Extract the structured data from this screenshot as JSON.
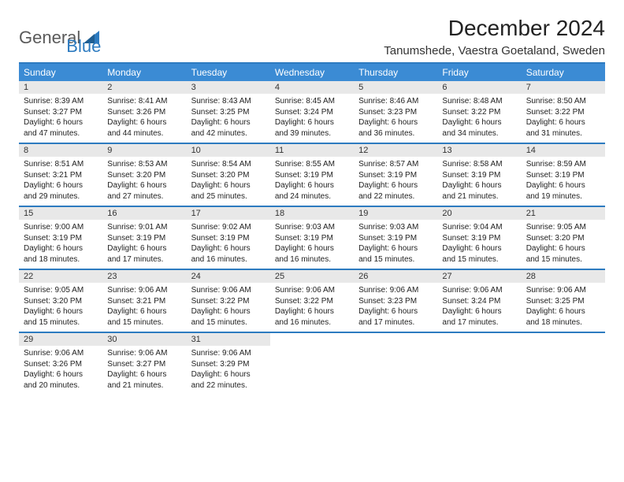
{
  "brand": {
    "part1": "General",
    "part2": "Blue"
  },
  "title": "December 2024",
  "location": "Tanumshede, Vaestra Goetaland, Sweden",
  "colors": {
    "header_bar": "#3b8bd4",
    "border": "#2d7bc0",
    "daynum_bg": "#e8e8e8",
    "text": "#222222",
    "logo_gray": "#5a5a5a",
    "logo_blue": "#2d7bc0",
    "page_bg": "#ffffff"
  },
  "weekdays": [
    "Sunday",
    "Monday",
    "Tuesday",
    "Wednesday",
    "Thursday",
    "Friday",
    "Saturday"
  ],
  "weeks": [
    [
      {
        "n": "1",
        "sr": "Sunrise: 8:39 AM",
        "ss": "Sunset: 3:27 PM",
        "d1": "Daylight: 6 hours",
        "d2": "and 47 minutes."
      },
      {
        "n": "2",
        "sr": "Sunrise: 8:41 AM",
        "ss": "Sunset: 3:26 PM",
        "d1": "Daylight: 6 hours",
        "d2": "and 44 minutes."
      },
      {
        "n": "3",
        "sr": "Sunrise: 8:43 AM",
        "ss": "Sunset: 3:25 PM",
        "d1": "Daylight: 6 hours",
        "d2": "and 42 minutes."
      },
      {
        "n": "4",
        "sr": "Sunrise: 8:45 AM",
        "ss": "Sunset: 3:24 PM",
        "d1": "Daylight: 6 hours",
        "d2": "and 39 minutes."
      },
      {
        "n": "5",
        "sr": "Sunrise: 8:46 AM",
        "ss": "Sunset: 3:23 PM",
        "d1": "Daylight: 6 hours",
        "d2": "and 36 minutes."
      },
      {
        "n": "6",
        "sr": "Sunrise: 8:48 AM",
        "ss": "Sunset: 3:22 PM",
        "d1": "Daylight: 6 hours",
        "d2": "and 34 minutes."
      },
      {
        "n": "7",
        "sr": "Sunrise: 8:50 AM",
        "ss": "Sunset: 3:22 PM",
        "d1": "Daylight: 6 hours",
        "d2": "and 31 minutes."
      }
    ],
    [
      {
        "n": "8",
        "sr": "Sunrise: 8:51 AM",
        "ss": "Sunset: 3:21 PM",
        "d1": "Daylight: 6 hours",
        "d2": "and 29 minutes."
      },
      {
        "n": "9",
        "sr": "Sunrise: 8:53 AM",
        "ss": "Sunset: 3:20 PM",
        "d1": "Daylight: 6 hours",
        "d2": "and 27 minutes."
      },
      {
        "n": "10",
        "sr": "Sunrise: 8:54 AM",
        "ss": "Sunset: 3:20 PM",
        "d1": "Daylight: 6 hours",
        "d2": "and 25 minutes."
      },
      {
        "n": "11",
        "sr": "Sunrise: 8:55 AM",
        "ss": "Sunset: 3:19 PM",
        "d1": "Daylight: 6 hours",
        "d2": "and 24 minutes."
      },
      {
        "n": "12",
        "sr": "Sunrise: 8:57 AM",
        "ss": "Sunset: 3:19 PM",
        "d1": "Daylight: 6 hours",
        "d2": "and 22 minutes."
      },
      {
        "n": "13",
        "sr": "Sunrise: 8:58 AM",
        "ss": "Sunset: 3:19 PM",
        "d1": "Daylight: 6 hours",
        "d2": "and 21 minutes."
      },
      {
        "n": "14",
        "sr": "Sunrise: 8:59 AM",
        "ss": "Sunset: 3:19 PM",
        "d1": "Daylight: 6 hours",
        "d2": "and 19 minutes."
      }
    ],
    [
      {
        "n": "15",
        "sr": "Sunrise: 9:00 AM",
        "ss": "Sunset: 3:19 PM",
        "d1": "Daylight: 6 hours",
        "d2": "and 18 minutes."
      },
      {
        "n": "16",
        "sr": "Sunrise: 9:01 AM",
        "ss": "Sunset: 3:19 PM",
        "d1": "Daylight: 6 hours",
        "d2": "and 17 minutes."
      },
      {
        "n": "17",
        "sr": "Sunrise: 9:02 AM",
        "ss": "Sunset: 3:19 PM",
        "d1": "Daylight: 6 hours",
        "d2": "and 16 minutes."
      },
      {
        "n": "18",
        "sr": "Sunrise: 9:03 AM",
        "ss": "Sunset: 3:19 PM",
        "d1": "Daylight: 6 hours",
        "d2": "and 16 minutes."
      },
      {
        "n": "19",
        "sr": "Sunrise: 9:03 AM",
        "ss": "Sunset: 3:19 PM",
        "d1": "Daylight: 6 hours",
        "d2": "and 15 minutes."
      },
      {
        "n": "20",
        "sr": "Sunrise: 9:04 AM",
        "ss": "Sunset: 3:19 PM",
        "d1": "Daylight: 6 hours",
        "d2": "and 15 minutes."
      },
      {
        "n": "21",
        "sr": "Sunrise: 9:05 AM",
        "ss": "Sunset: 3:20 PM",
        "d1": "Daylight: 6 hours",
        "d2": "and 15 minutes."
      }
    ],
    [
      {
        "n": "22",
        "sr": "Sunrise: 9:05 AM",
        "ss": "Sunset: 3:20 PM",
        "d1": "Daylight: 6 hours",
        "d2": "and 15 minutes."
      },
      {
        "n": "23",
        "sr": "Sunrise: 9:06 AM",
        "ss": "Sunset: 3:21 PM",
        "d1": "Daylight: 6 hours",
        "d2": "and 15 minutes."
      },
      {
        "n": "24",
        "sr": "Sunrise: 9:06 AM",
        "ss": "Sunset: 3:22 PM",
        "d1": "Daylight: 6 hours",
        "d2": "and 15 minutes."
      },
      {
        "n": "25",
        "sr": "Sunrise: 9:06 AM",
        "ss": "Sunset: 3:22 PM",
        "d1": "Daylight: 6 hours",
        "d2": "and 16 minutes."
      },
      {
        "n": "26",
        "sr": "Sunrise: 9:06 AM",
        "ss": "Sunset: 3:23 PM",
        "d1": "Daylight: 6 hours",
        "d2": "and 17 minutes."
      },
      {
        "n": "27",
        "sr": "Sunrise: 9:06 AM",
        "ss": "Sunset: 3:24 PM",
        "d1": "Daylight: 6 hours",
        "d2": "and 17 minutes."
      },
      {
        "n": "28",
        "sr": "Sunrise: 9:06 AM",
        "ss": "Sunset: 3:25 PM",
        "d1": "Daylight: 6 hours",
        "d2": "and 18 minutes."
      }
    ],
    [
      {
        "n": "29",
        "sr": "Sunrise: 9:06 AM",
        "ss": "Sunset: 3:26 PM",
        "d1": "Daylight: 6 hours",
        "d2": "and 20 minutes."
      },
      {
        "n": "30",
        "sr": "Sunrise: 9:06 AM",
        "ss": "Sunset: 3:27 PM",
        "d1": "Daylight: 6 hours",
        "d2": "and 21 minutes."
      },
      {
        "n": "31",
        "sr": "Sunrise: 9:06 AM",
        "ss": "Sunset: 3:29 PM",
        "d1": "Daylight: 6 hours",
        "d2": "and 22 minutes."
      },
      {
        "empty": true
      },
      {
        "empty": true
      },
      {
        "empty": true
      },
      {
        "empty": true
      }
    ]
  ]
}
